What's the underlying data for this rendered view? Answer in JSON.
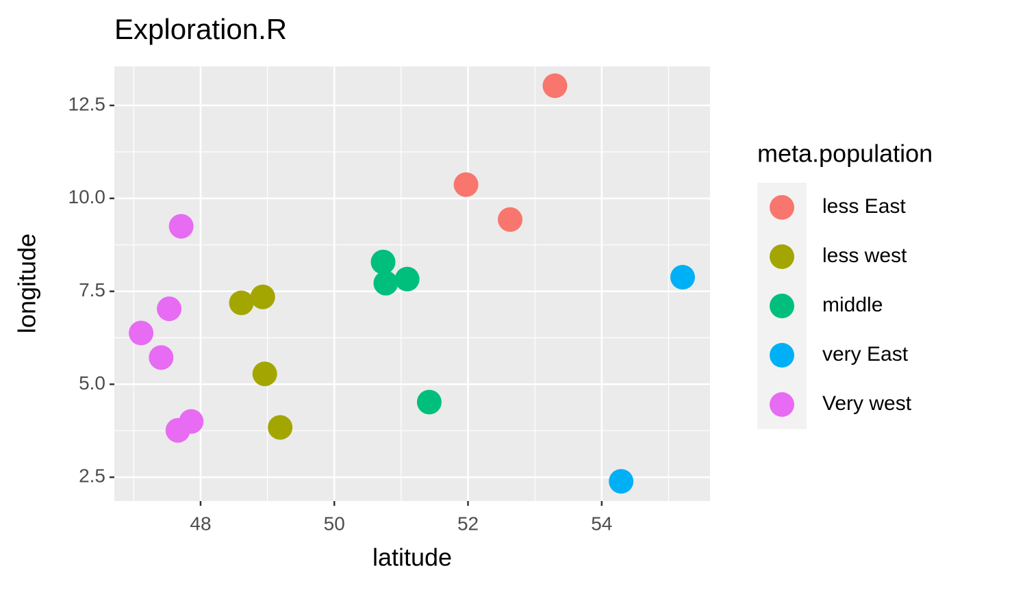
{
  "chart_data": {
    "type": "scatter",
    "title": "Exploration.R",
    "x_label": "latitude",
    "y_label": "longitude",
    "legend_title": "meta.population",
    "legend_position": "right",
    "xlim": [
      46.71,
      55.62
    ],
    "ylim": [
      1.86,
      13.55
    ],
    "xticks": [
      48,
      50,
      52,
      54
    ],
    "yticks": [
      2.5,
      5.0,
      7.5,
      10.0,
      12.5
    ],
    "x_minor_ticks": [
      47,
      49,
      51,
      53,
      55
    ],
    "y_minor_ticks": [
      3.75,
      6.25,
      8.75,
      11.25
    ],
    "grid": true,
    "series": [
      {
        "name": "less East",
        "color": "#f8766d",
        "x": [
          53.3,
          51.97,
          52.63
        ],
        "values": [
          13.03,
          10.37,
          9.43
        ]
      },
      {
        "name": "less west",
        "color": "#a3a500",
        "x": [
          48.61,
          48.93,
          48.96,
          49.19
        ],
        "values": [
          7.19,
          7.35,
          5.28,
          3.84
        ]
      },
      {
        "name": "middle",
        "color": "#00bf7d",
        "x": [
          50.73,
          50.77,
          51.09,
          51.42
        ],
        "values": [
          8.29,
          7.72,
          7.83,
          4.52
        ]
      },
      {
        "name": "very East",
        "color": "#00b0f6",
        "x": [
          55.21,
          54.29
        ],
        "values": [
          7.88,
          2.39
        ]
      },
      {
        "name": "Very west",
        "color": "#e76bf3",
        "x": [
          47.71,
          47.53,
          47.11,
          47.41,
          47.86,
          47.66
        ],
        "values": [
          9.25,
          7.03,
          6.38,
          5.72,
          4.0,
          3.76
        ]
      }
    ]
  }
}
